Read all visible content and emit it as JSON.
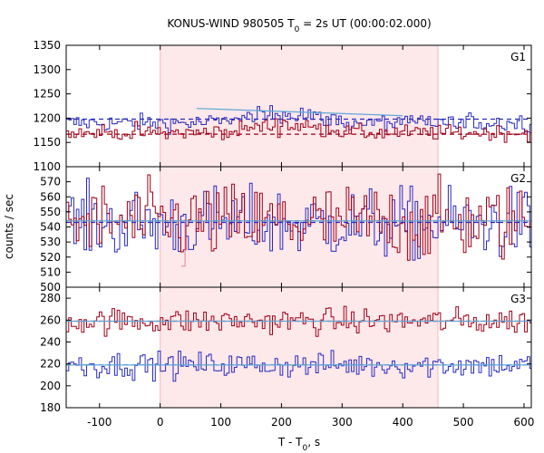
{
  "chart_data": {
    "type": "line",
    "title": {
      "prefix": "KONUS-WIND 980505 T",
      "sub": "0",
      "suffix": " = 2s UT (00:00:02.000)"
    },
    "xlabel": {
      "prefix": "T - T",
      "sub": "0",
      "suffix": ", s"
    },
    "ylabel": "counts / sec",
    "xlim": [
      -155,
      612
    ],
    "xticks": [
      -100,
      0,
      100,
      200,
      300,
      400,
      500,
      600
    ],
    "xtick_labels": [
      "-100",
      "0",
      "100",
      "200",
      "300",
      "400",
      "500",
      "600"
    ],
    "shaded_interval": [
      0,
      458
    ],
    "colors": {
      "red": "#a00018",
      "blue": "#2a2ac0",
      "fit": "#5fa8d8",
      "shade": "#fde8ea"
    },
    "panels": [
      {
        "label": "G1",
        "ylim": [
          1100,
          1350
        ],
        "yticks": [
          1100,
          1150,
          1200,
          1250,
          1300,
          1350
        ],
        "ytick_labels": [
          "1100",
          "1150",
          "1200",
          "1250",
          "1300",
          "1350"
        ],
        "series": [
          {
            "color": "blue",
            "base": 1190,
            "noise": 9,
            "bump": {
              "x0": 80,
              "x1": 320,
              "amp": 28
            }
          },
          {
            "color": "red",
            "base": 1170,
            "noise": 8,
            "bump": {
              "x0": 80,
              "x1": 320,
              "amp": 22
            }
          }
        ],
        "dashed": [
          {
            "color": "blue",
            "y": 1198
          },
          {
            "color": "red",
            "y": 1167
          }
        ],
        "fit": [
          {
            "x": [
              60,
              400
            ],
            "y": [
              1220,
              1205
            ]
          }
        ]
      },
      {
        "label": "G2",
        "ylim": [
          500,
          580
        ],
        "yticks": [
          500,
          510,
          520,
          530,
          540,
          550,
          560,
          570
        ],
        "ytick_labels": [
          "500",
          "510",
          "520",
          "530",
          "540",
          "550",
          "560",
          "570"
        ],
        "series": [
          {
            "color": "blue",
            "base": 542,
            "noise": 12,
            "bump": null
          },
          {
            "color": "red",
            "base": 543,
            "noise": 13,
            "bump": null
          }
        ],
        "dashed": [
          {
            "color": "blue",
            "y": 543
          },
          {
            "color": "red",
            "y": 544
          }
        ],
        "fit": [
          {
            "x": [
              -155,
              612
            ],
            "y": [
              544,
              544
            ]
          }
        ],
        "outlier": {
          "x": 38,
          "y": 514
        }
      },
      {
        "label": "G3",
        "ylim": [
          180,
          290
        ],
        "yticks": [
          180,
          200,
          220,
          240,
          260,
          280
        ],
        "ytick_labels": [
          "180",
          "200",
          "220",
          "240",
          "260",
          "280"
        ],
        "series": [
          {
            "color": "red",
            "base": 259,
            "noise": 6,
            "bump": null
          },
          {
            "color": "blue",
            "base": 219,
            "noise": 6,
            "bump": null
          }
        ],
        "dashed": [
          {
            "color": "red",
            "y": 259
          },
          {
            "color": "blue",
            "y": 219
          }
        ],
        "fit": [
          {
            "x": [
              -155,
              612
            ],
            "y": [
              259,
              259
            ]
          },
          {
            "x": [
              -155,
              612
            ],
            "y": [
              219,
              219
            ]
          }
        ]
      }
    ]
  }
}
